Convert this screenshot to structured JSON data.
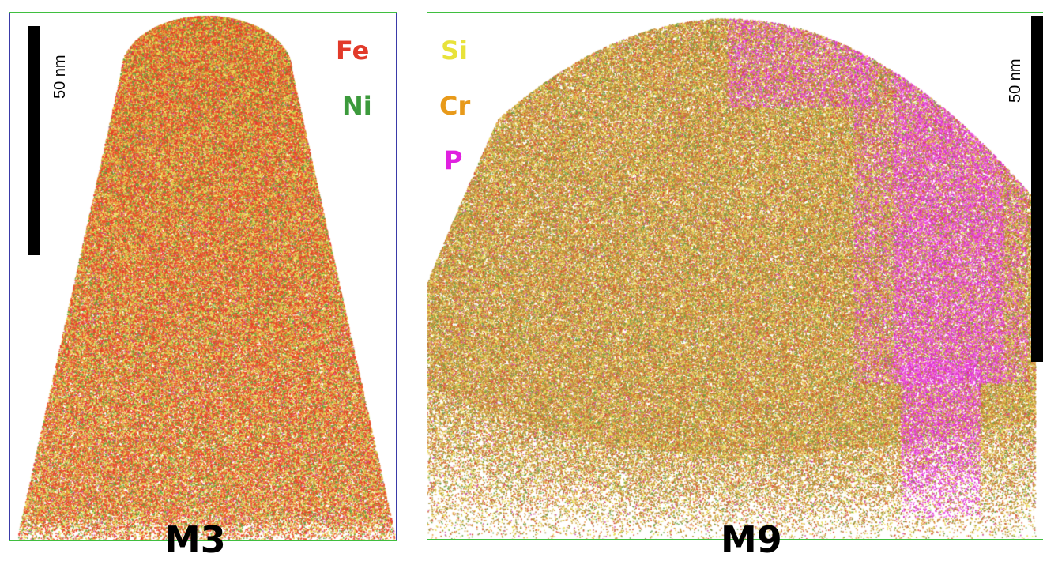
{
  "left_panel": {
    "sample_label": "M3",
    "scale_bar_label": "50 nm",
    "legend": [
      {
        "symbol": "Fe",
        "color": "#e23a2a"
      },
      {
        "symbol": "Ni",
        "color": "#3c9a3c"
      }
    ]
  },
  "right_panel": {
    "sample_label": "M9",
    "scale_bar_label": "50 nm",
    "legend": [
      {
        "symbol": "Si",
        "color": "#e8e23a"
      },
      {
        "symbol": "Cr",
        "color": "#e89a1a"
      },
      {
        "symbol": "P",
        "color": "#e020e0"
      }
    ]
  },
  "colors": {
    "frame_green": "#3fbf3f",
    "frame_blue": "#3a3aa8"
  }
}
